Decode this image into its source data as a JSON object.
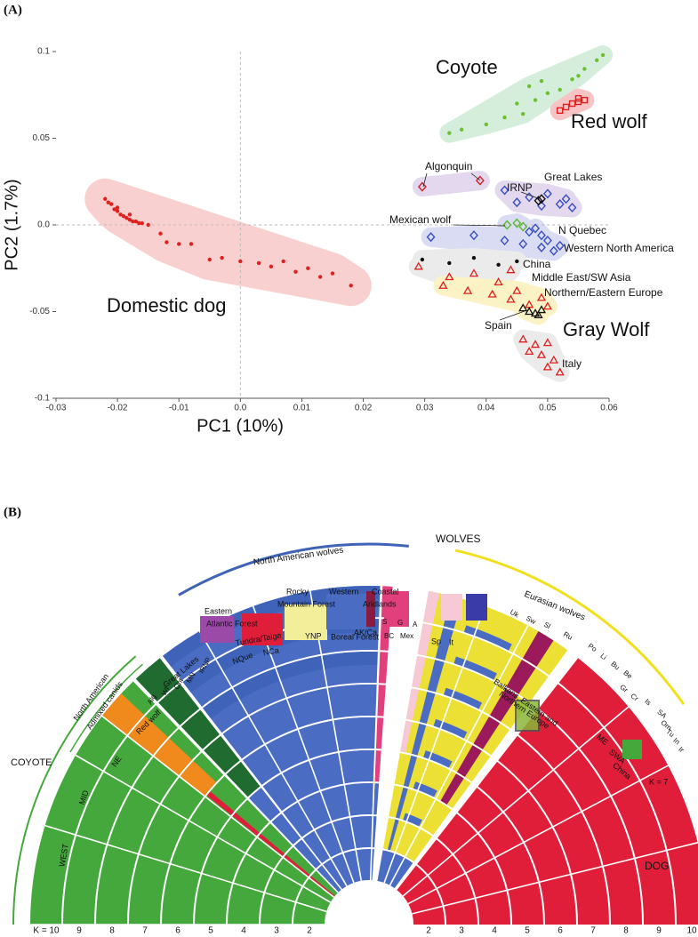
{
  "panel_labels": [
    "(A)",
    "(B)"
  ],
  "chart_data": {
    "type": "scatter",
    "xlabel": "PC1 (10%)",
    "ylabel": "PC2 (1.7%)",
    "xlim": [
      -0.03,
      0.06
    ],
    "ylim": [
      -0.1,
      0.1
    ],
    "xticks": [
      -0.03,
      -0.02,
      -0.01,
      {
        "value": 0,
        "label": "0.0"
      },
      0.01,
      0.02,
      0.03,
      0.04,
      0.05,
      0.06
    ],
    "yticks": [
      -0.1,
      -0.05,
      {
        "value": 0,
        "label": "0.0"
      },
      0.05,
      0.1
    ],
    "zero_lines": true,
    "annotations": [
      "Gray Wolf"
    ],
    "series": [
      {
        "name": "Domestic dog",
        "color": "#e0201e",
        "marker": "dot",
        "hull": "#f9d0d0",
        "x": [
          -0.022,
          -0.0215,
          -0.021,
          -0.0205,
          -0.02,
          -0.0195,
          -0.019,
          -0.0185,
          -0.018,
          -0.0175,
          -0.017,
          -0.0165,
          -0.016,
          -0.015,
          -0.02,
          -0.018,
          -0.013,
          -0.012,
          -0.01,
          -0.008,
          -0.005,
          -0.003,
          0.0,
          0.003,
          0.005,
          0.007,
          0.009,
          0.011,
          0.013,
          0.015,
          0.018
        ],
        "values": [
          0.015,
          0.013,
          0.012,
          0.009,
          0.008,
          0.006,
          0.005,
          0.004,
          0.003,
          0.002,
          0.002,
          0.001,
          0.001,
          0.0,
          0.01,
          0.006,
          -0.005,
          -0.01,
          -0.011,
          -0.011,
          -0.02,
          -0.019,
          -0.021,
          -0.022,
          -0.024,
          -0.021,
          -0.027,
          -0.025,
          -0.03,
          -0.028,
          -0.035
        ]
      },
      {
        "name": "Coyote",
        "color": "#6cbf2e",
        "marker": "dot",
        "hull": "#d5eedb",
        "x": [
          0.034,
          0.036,
          0.04,
          0.043,
          0.046,
          0.045,
          0.048,
          0.05,
          0.047,
          0.052,
          0.054,
          0.056,
          0.058,
          0.059,
          0.055,
          0.049
        ],
        "values": [
          0.053,
          0.055,
          0.058,
          0.062,
          0.064,
          0.07,
          0.072,
          0.076,
          0.08,
          0.078,
          0.084,
          0.09,
          0.095,
          0.098,
          0.086,
          0.083
        ]
      },
      {
        "name": "Red wolf",
        "color": "#e0201e",
        "marker": "square",
        "hull": "#f7c4c6",
        "x": [
          0.052,
          0.053,
          0.054,
          0.055,
          0.056,
          0.055
        ],
        "values": [
          0.066,
          0.068,
          0.07,
          0.071,
          0.072,
          0.073
        ]
      },
      {
        "name": "Algonquin",
        "color": "#d0202a",
        "marker": "diamond",
        "hull": "#e3d8ee",
        "x": [
          0.0296,
          0.039
        ],
        "values": [
          0.022,
          0.0256
        ]
      },
      {
        "name": "Great Lakes",
        "color": "#3a4fc0",
        "marker": "diamond",
        "hull": "#e3d8ee",
        "x": [
          0.043,
          0.045,
          0.047,
          0.049,
          0.05,
          0.052,
          0.053,
          0.054
        ],
        "values": [
          0.02,
          0.013,
          0.016,
          0.011,
          0.018,
          0.012,
          0.015,
          0.01
        ]
      },
      {
        "name": "IRNP",
        "color": "#111111",
        "marker": "diamond",
        "hull": "#e3d8ee",
        "x": [
          0.0485,
          0.049
        ],
        "values": [
          0.014,
          0.015
        ]
      },
      {
        "name": "Mexican wolf",
        "color": "#5cb82e",
        "marker": "diamond",
        "hull": "#d9dcf2",
        "x": [
          0.0434,
          0.045,
          0.046
        ],
        "values": [
          0.0,
          0.001,
          -0.001
        ]
      },
      {
        "name": "N Quebec",
        "color": "#3a4fc0",
        "marker": "diamond",
        "hull": "#d9dcf2",
        "x": [
          0.047,
          0.049,
          0.048
        ],
        "values": [
          -0.004,
          -0.006,
          -0.002
        ]
      },
      {
        "name": "Western North America",
        "color": "#3a4fc0",
        "marker": "diamond",
        "hull": "#d9dcf2",
        "x": [
          0.031,
          0.038,
          0.043,
          0.046,
          0.049,
          0.05,
          0.051,
          0.052
        ],
        "values": [
          -0.007,
          -0.006,
          -0.009,
          -0.011,
          -0.013,
          -0.009,
          -0.015,
          -0.012
        ]
      },
      {
        "name": "China",
        "color": "#111111",
        "marker": "dot",
        "hull": "#ebebeb",
        "x": [
          0.0296,
          0.034,
          0.038,
          0.042,
          0.045
        ],
        "values": [
          -0.02,
          -0.022,
          -0.019,
          -0.023,
          -0.021
        ]
      },
      {
        "name": "Middle East/SW Asia",
        "color": "#e0201e",
        "marker": "triangle",
        "hull": "#ebebeb",
        "x": [
          0.029,
          0.034,
          0.038,
          0.042,
          0.044
        ],
        "values": [
          -0.024,
          -0.03,
          -0.028,
          -0.033,
          -0.026
        ]
      },
      {
        "name": "Northern/Eastern Europe",
        "color": "#e0201e",
        "marker": "triangle",
        "hull": "#fbf2c6",
        "x": [
          0.033,
          0.037,
          0.041,
          0.044,
          0.047,
          0.049,
          0.045,
          0.05
        ],
        "values": [
          -0.035,
          -0.038,
          -0.04,
          -0.043,
          -0.046,
          -0.042,
          -0.038,
          -0.047
        ]
      },
      {
        "name": "Spain",
        "color": "#111111",
        "marker": "triangle",
        "hull": "#fbf2c6",
        "x": [
          0.046,
          0.047,
          0.048,
          0.049,
          0.0485
        ],
        "values": [
          -0.048,
          -0.05,
          -0.051,
          -0.049,
          -0.052
        ]
      },
      {
        "name": "Italy",
        "color": "#e0201e",
        "marker": "triangle",
        "hull": "#ebebeb",
        "x": [
          0.046,
          0.048,
          0.05,
          0.047,
          0.049,
          0.051,
          0.05,
          0.052
        ],
        "values": [
          -0.066,
          -0.069,
          -0.068,
          -0.073,
          -0.075,
          -0.078,
          -0.082,
          -0.085
        ]
      }
    ]
  },
  "diagram": {
    "labels": [
      "WOLVES",
      "COYOTE",
      "DOG",
      "North American wolves",
      "Eurasian wolves",
      "North American",
      "Admixed canids",
      "Red wolf",
      "Great Lakes",
      "NE",
      "MID",
      "WEST",
      "Eastern",
      "Atlantic Forest",
      "Tundra/Taiga",
      "Rocky",
      "Mountain Forest",
      "Western",
      "Coastal",
      "Aridlands",
      "Boreal Forest",
      "NQue",
      "NCa",
      "YNP",
      "AK/Ca",
      "BC",
      "Mex",
      "S",
      "G",
      "A",
      "Sp",
      "It",
      "Uk",
      "Sw",
      "Sl",
      "Ru",
      "Po",
      "Li",
      "Bu",
      "Be",
      "Gr",
      "Cr",
      "Is",
      "SA",
      "Om",
      "Tu",
      "In",
      "Ir",
      "Balkans, Eastern and",
      "Northern Europe",
      "ME",
      "SWA",
      "China",
      "K = 7",
      "Alg",
      "WI",
      "Ont",
      "MN",
      "IRNP"
    ],
    "k_left": [
      "K = 10",
      "9",
      "8",
      "7",
      "6",
      "5",
      "4",
      "3",
      "2"
    ],
    "k_right": [
      "2",
      "3",
      "4",
      "5",
      "6",
      "7",
      "8",
      "9",
      "10"
    ]
  }
}
